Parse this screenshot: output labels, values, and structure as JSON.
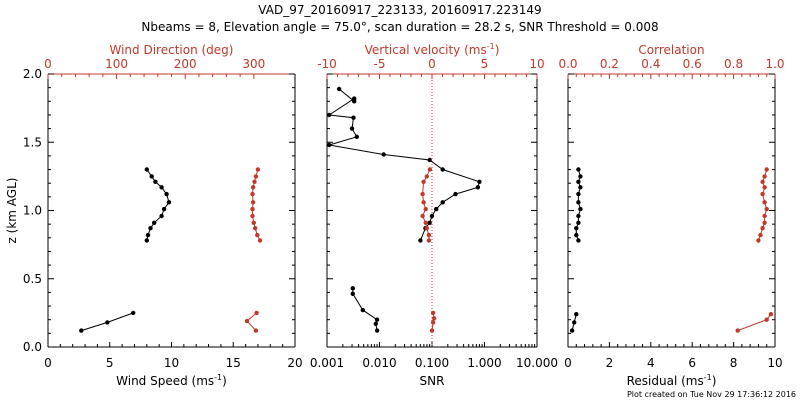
{
  "title_line1": "VAD_97_20160917_223133, 20160917.223149",
  "title_line2": "Nbeams = 8, Elevation angle = 75.0°, scan duration = 28.2 s, SNR Threshold = 0.008",
  "footer": "Plot created on Tue Nov 29 17:36:12 2016",
  "colors": {
    "black": "#000000",
    "red": "#c0392b"
  },
  "chart_data": [
    {
      "type": "line",
      "name": "wind",
      "ylabel": "z (km AGL)",
      "ylim": [
        0,
        2
      ],
      "yticks": [
        "0.0",
        "0.5",
        "1.0",
        "1.5",
        "2.0"
      ],
      "bottom_axis": {
        "label_main": "Wind Speed (ms",
        "label_sup": "-1",
        "label_end": ")",
        "range": [
          0,
          20
        ],
        "ticks": [
          "0",
          "5",
          "10",
          "15",
          "20"
        ]
      },
      "top_axis": {
        "label": "Wind Direction (deg)",
        "range": [
          0,
          360
        ],
        "ticks": [
          "0",
          "100",
          "200",
          "300"
        ],
        "tick_values": [
          0,
          100,
          200,
          300
        ]
      },
      "series": [
        {
          "name": "Wind Speed",
          "axis": "bottom",
          "color": "#000000",
          "groups": [
            {
              "x": [
                8.0,
                8.4,
                8.7,
                9.2,
                9.6,
                9.8,
                9.4,
                9.2,
                8.6,
                8.3,
                8.1,
                8.0
              ],
              "y": [
                1.3,
                1.25,
                1.21,
                1.17,
                1.12,
                1.06,
                1.01,
                0.96,
                0.91,
                0.87,
                0.82,
                0.78
              ]
            },
            {
              "x": [
                6.9,
                4.8,
                2.7
              ],
              "y": [
                0.25,
                0.18,
                0.12
              ]
            }
          ]
        },
        {
          "name": "Wind Direction",
          "axis": "top",
          "color": "#c0392b",
          "groups": [
            {
              "x": [
                306,
                303,
                301,
                299,
                298,
                299,
                298,
                298,
                300,
                302,
                305,
                309
              ],
              "y": [
                1.3,
                1.25,
                1.21,
                1.17,
                1.12,
                1.06,
                1.01,
                0.96,
                0.91,
                0.87,
                0.82,
                0.78
              ]
            },
            {
              "x": [
                304,
                290,
                303
              ],
              "y": [
                0.25,
                0.19,
                0.12
              ]
            }
          ]
        }
      ]
    },
    {
      "type": "line",
      "name": "vertical",
      "ylim": [
        0,
        2
      ],
      "bottom_axis": {
        "label": "SNR",
        "scale": "log",
        "range": [
          0.001,
          10
        ],
        "ticks": [
          "0.001",
          "0.010",
          "0.100",
          "1.000",
          "10.000"
        ],
        "tick_values": [
          0.001,
          0.01,
          0.1,
          1,
          10
        ]
      },
      "top_axis": {
        "label_main": "Vertical velocity (ms",
        "label_sup": "-1",
        "label_end": ")",
        "range": [
          -10,
          10
        ],
        "ticks": [
          "-10",
          "-5",
          "0",
          "5",
          "10"
        ],
        "tick_values": [
          -10,
          -5,
          0,
          5,
          10
        ]
      },
      "reference_line": {
        "axis": "top",
        "value": 0,
        "style": "dotted"
      },
      "series": [
        {
          "name": "SNR",
          "axis": "bottom",
          "color": "#000000",
          "groups": [
            {
              "x": [
                0.0017,
                0.0033,
                0.0033,
                0.0011,
                0.0032,
                0.003,
                0.0037,
                0.0011,
                0.012,
                0.09,
                0.16,
                0.8,
                0.75,
                0.28,
                0.16,
                0.12,
                0.1,
                0.09,
                0.075,
                0.06
              ],
              "y": [
                1.89,
                1.8,
                1.82,
                1.7,
                1.68,
                1.6,
                1.54,
                1.48,
                1.41,
                1.37,
                1.3,
                1.21,
                1.17,
                1.12,
                1.06,
                1.01,
                0.96,
                0.91,
                0.87,
                0.78
              ]
            },
            {
              "x": [
                0.0031,
                0.0031,
                0.0048,
                0.009,
                0.0085,
                0.009
              ],
              "y": [
                0.43,
                0.39,
                0.27,
                0.2,
                0.17,
                0.12
              ]
            }
          ]
        },
        {
          "name": "Vertical velocity",
          "axis": "top",
          "color": "#c0392b",
          "groups": [
            {
              "x": [
                -0.2,
                -0.5,
                -0.8,
                -0.9,
                -0.8,
                -0.6,
                -0.9,
                -0.6,
                -0.5,
                -0.3,
                -0.3
              ],
              "y": [
                1.3,
                1.25,
                1.21,
                1.12,
                1.06,
                1.01,
                0.96,
                0.91,
                0.87,
                0.82,
                0.78
              ]
            },
            {
              "x": [
                0.1,
                0.2,
                0.1,
                0.0
              ],
              "y": [
                0.25,
                0.21,
                0.18,
                0.12
              ]
            }
          ]
        }
      ]
    },
    {
      "type": "line",
      "name": "quality",
      "ylim": [
        0,
        2
      ],
      "bottom_axis": {
        "label_main": "Residual (ms",
        "label_sup": "-1",
        "label_end": ")",
        "range": [
          0,
          10
        ],
        "ticks": [
          "0",
          "2",
          "4",
          "6",
          "8",
          "10"
        ]
      },
      "top_axis": {
        "label": "Correlation",
        "range": [
          0,
          1
        ],
        "ticks": [
          "0.0",
          "0.2",
          "0.4",
          "0.6",
          "0.8",
          "1.0"
        ],
        "tick_values": [
          0,
          0.2,
          0.4,
          0.6,
          0.8,
          1.0
        ]
      },
      "series": [
        {
          "name": "Residual",
          "axis": "bottom",
          "color": "#000000",
          "groups": [
            {
              "x": [
                0.5,
                0.6,
                0.5,
                0.6,
                0.5,
                0.5,
                0.6,
                0.5,
                0.5,
                0.4,
                0.4,
                0.5
              ],
              "y": [
                1.3,
                1.25,
                1.21,
                1.17,
                1.12,
                1.06,
                1.01,
                0.96,
                0.91,
                0.87,
                0.82,
                0.78
              ]
            },
            {
              "x": [
                0.4,
                0.3,
                0.2
              ],
              "y": [
                0.24,
                0.18,
                0.12
              ]
            }
          ]
        },
        {
          "name": "Correlation",
          "axis": "top",
          "color": "#c0392b",
          "groups": [
            {
              "x": [
                0.96,
                0.95,
                0.94,
                0.95,
                0.94,
                0.95,
                0.96,
                0.95,
                0.95,
                0.94,
                0.93,
                0.92
              ],
              "y": [
                1.3,
                1.25,
                1.21,
                1.17,
                1.12,
                1.06,
                1.01,
                0.96,
                0.91,
                0.87,
                0.82,
                0.78
              ]
            },
            {
              "x": [
                0.98,
                0.96,
                0.82
              ],
              "y": [
                0.24,
                0.2,
                0.12
              ]
            }
          ]
        }
      ]
    }
  ]
}
